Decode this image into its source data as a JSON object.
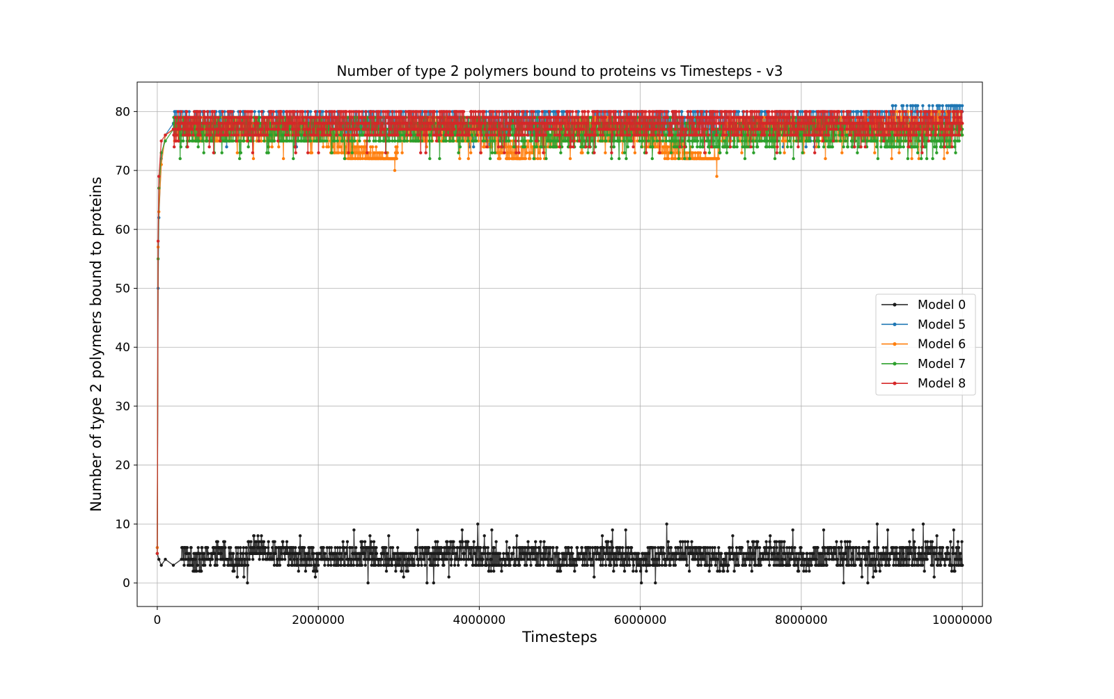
{
  "chart_data": {
    "type": "line",
    "title": "Number of type 2 polymers bound to proteins vs Timesteps - v3",
    "xlabel": "Timesteps",
    "ylabel": "Number of type 2 polymers bound to proteins",
    "xlim": [
      -250000,
      10250000
    ],
    "ylim": [
      -4,
      85
    ],
    "xticks": [
      0,
      2000000,
      4000000,
      6000000,
      8000000,
      10000000
    ],
    "xtick_labels": [
      "0",
      "2000000",
      "4000000",
      "6000000",
      "8000000",
      "10000000"
    ],
    "yticks": [
      0,
      10,
      20,
      30,
      40,
      50,
      60,
      70,
      80
    ],
    "ytick_labels": [
      "0",
      "10",
      "20",
      "30",
      "40",
      "50",
      "60",
      "70",
      "80"
    ],
    "grid": true,
    "legend_position": "center-right",
    "markers": true,
    "series_order_note": "",
    "series": [
      {
        "name": "Model 0",
        "color": "#1a1a1a",
        "x": [
          0,
          20000,
          50000,
          100000,
          200000,
          300000,
          500000,
          800000,
          1000000,
          1200000,
          1500000,
          2000000,
          2500000,
          3000000,
          3500000,
          3900000,
          4200000,
          4700000,
          5000000,
          5500000,
          6000000,
          6500000,
          7000000,
          7500000,
          7700000,
          8000000,
          8500000,
          9000000,
          9500000,
          10000000
        ],
        "values": [
          5,
          4,
          3,
          4,
          3,
          4,
          3,
          4,
          3,
          5,
          4,
          3,
          4,
          3,
          4,
          4,
          3,
          4,
          3,
          4,
          3,
          4,
          3,
          4,
          4,
          3,
          4,
          3,
          4,
          3
        ],
        "min_band": 0,
        "max_band": 10
      },
      {
        "name": "Model 5",
        "color": "#1f77b4",
        "x": [
          0,
          10000,
          20000,
          50000,
          100000,
          200000,
          500000,
          1000000,
          2000000,
          3000000,
          4000000,
          5000000,
          6000000,
          7000000,
          8000000,
          9000000,
          10000000
        ],
        "values": [
          6,
          50,
          62,
          72,
          76,
          78,
          78,
          78,
          78,
          78,
          78,
          78,
          78,
          78,
          78,
          78,
          80
        ],
        "min_band": 74,
        "max_band": 81
      },
      {
        "name": "Model 6",
        "color": "#ff7f0e",
        "x": [
          0,
          10000,
          20000,
          50000,
          100000,
          200000,
          500000,
          1000000,
          2000000,
          2950000,
          3000000,
          4000000,
          4500000,
          5000000,
          6000000,
          6950000,
          7000000,
          8000000,
          9000000,
          10000000
        ],
        "values": [
          6,
          57,
          63,
          71,
          76,
          77,
          77,
          77,
          77,
          70,
          77,
          77,
          72,
          77,
          77,
          69,
          77,
          77,
          77,
          78
        ],
        "min_band": 72,
        "max_band": 81
      },
      {
        "name": "Model 7",
        "color": "#2ca02c",
        "x": [
          0,
          10000,
          20000,
          50000,
          100000,
          200000,
          500000,
          1000000,
          2000000,
          3000000,
          4000000,
          5000000,
          6000000,
          7000000,
          8000000,
          9000000,
          10000000
        ],
        "values": [
          5,
          55,
          67,
          73,
          75,
          77,
          77,
          77,
          77,
          77,
          77,
          76,
          77,
          76,
          77,
          76,
          76
        ],
        "min_band": 72,
        "max_band": 81
      },
      {
        "name": "Model 8",
        "color": "#d62728",
        "x": [
          0,
          10000,
          20000,
          50000,
          100000,
          200000,
          500000,
          1000000,
          2000000,
          3000000,
          4000000,
          5000000,
          6000000,
          7000000,
          8000000,
          9000000,
          10000000
        ],
        "values": [
          5,
          58,
          69,
          75,
          76,
          77,
          78,
          78,
          78,
          78,
          78,
          78,
          78,
          78,
          78,
          78,
          78
        ],
        "min_band": 73,
        "max_band": 81
      }
    ]
  }
}
